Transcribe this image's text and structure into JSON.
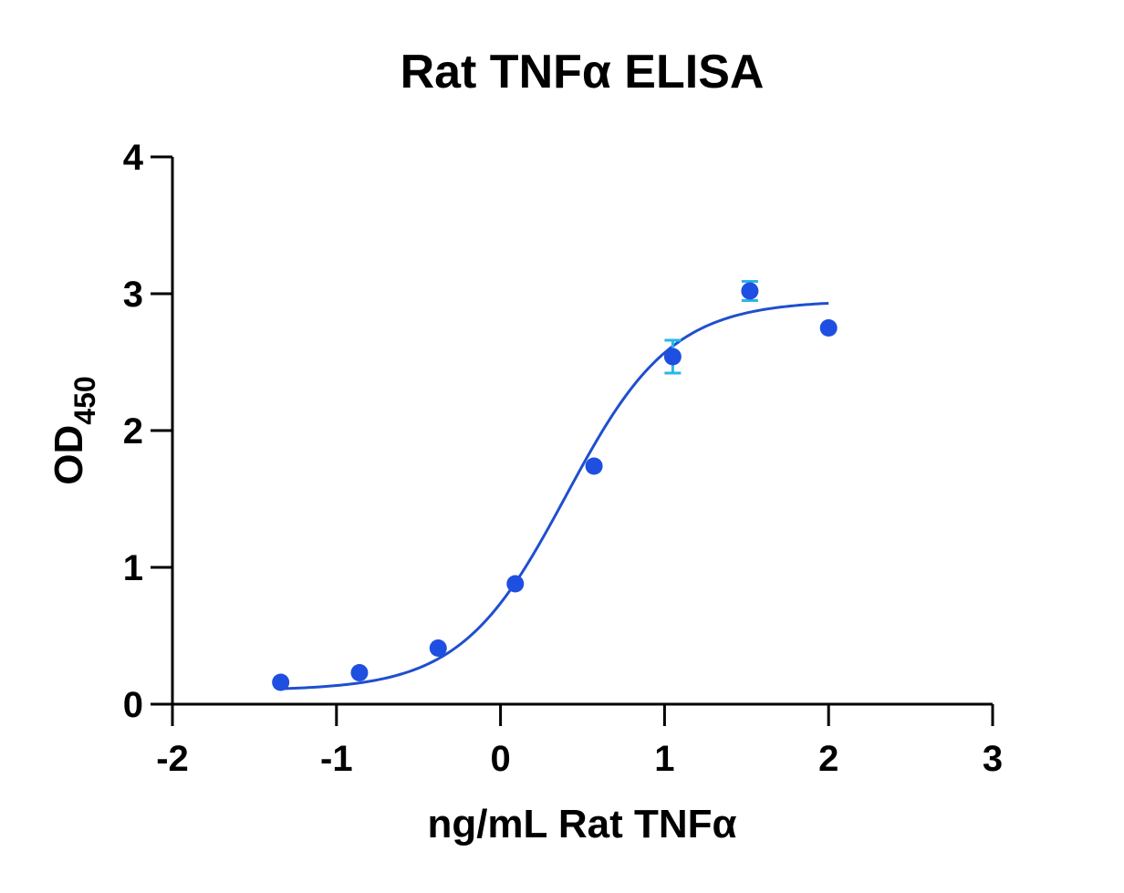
{
  "chart_data": {
    "type": "scatter",
    "title": "Rat TNFα  ELISA",
    "xlabel": "ng/mL Rat TNFα",
    "ylabel": "OD",
    "ylabel_subscript": "450",
    "xlim": [
      -2,
      3
    ],
    "ylim": [
      0,
      4
    ],
    "xticks": [
      -2,
      -1,
      0,
      1,
      2,
      3
    ],
    "yticks": [
      0,
      1,
      2,
      3,
      4
    ],
    "grid": false,
    "x_scale": "log10",
    "series": [
      {
        "x": [
          -1.34,
          -0.86,
          -0.38,
          0.09,
          0.57,
          1.05,
          1.52,
          2.0
        ],
        "y": [
          0.16,
          0.23,
          0.41,
          0.88,
          1.74,
          2.54,
          3.02,
          2.75
        ],
        "error": [
          0,
          0,
          0,
          0,
          0,
          0.12,
          0.07,
          0
        ],
        "marker_color": "#1f4fe0",
        "error_color": "#29b6e8"
      }
    ],
    "fit": {
      "model": "4PL",
      "bottom": 0.1,
      "top": 2.95,
      "log_ec50": 0.4,
      "hill_slope": 1.35,
      "x_range": [
        -1.34,
        2.0
      ],
      "color": "#1f4fcf"
    }
  }
}
